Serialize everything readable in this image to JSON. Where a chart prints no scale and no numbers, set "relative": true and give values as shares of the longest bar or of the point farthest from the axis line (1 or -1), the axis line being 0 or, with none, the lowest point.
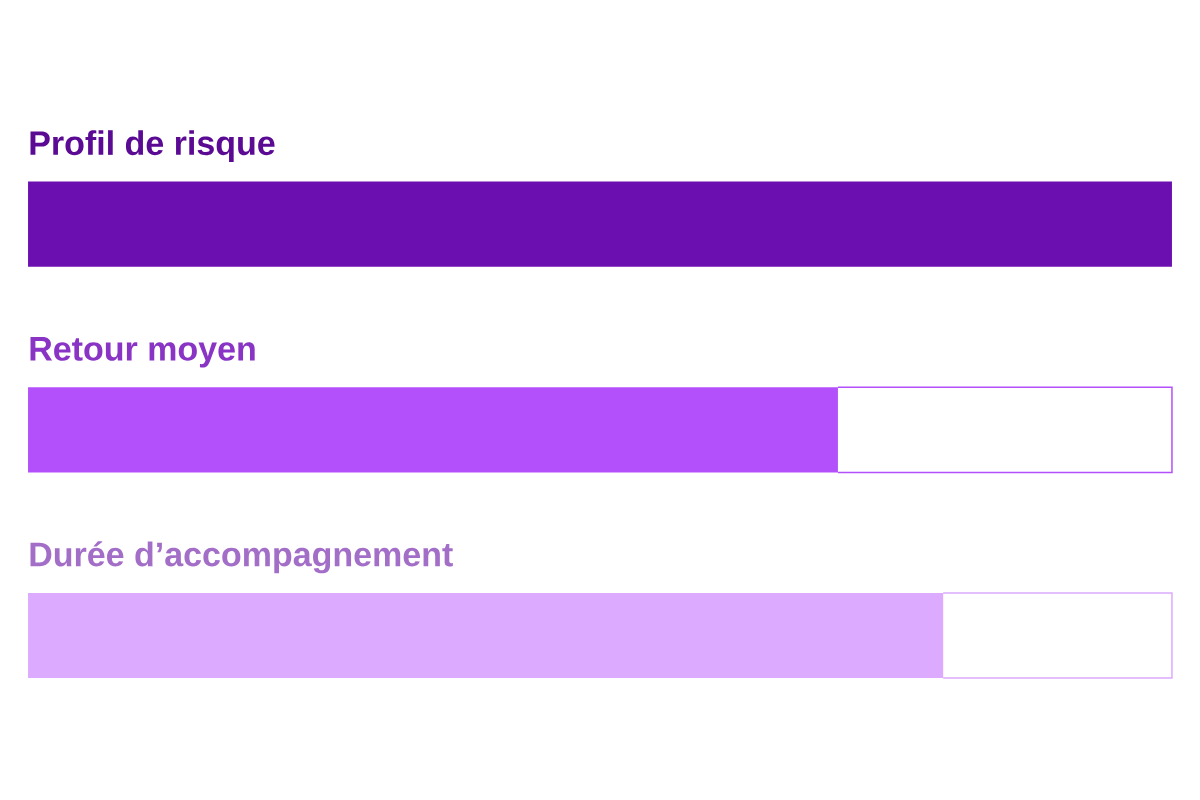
{
  "chart_data": {
    "type": "bar",
    "orientation": "horizontal",
    "relative": true,
    "categories": [
      "Profil de risque",
      "Retour moyen",
      "Durée d’accompagnement"
    ],
    "values": [
      1.0,
      0.708,
      0.8
    ],
    "colors": [
      "#6c0fb0",
      "#b350fb",
      "#dcaafe"
    ]
  }
}
